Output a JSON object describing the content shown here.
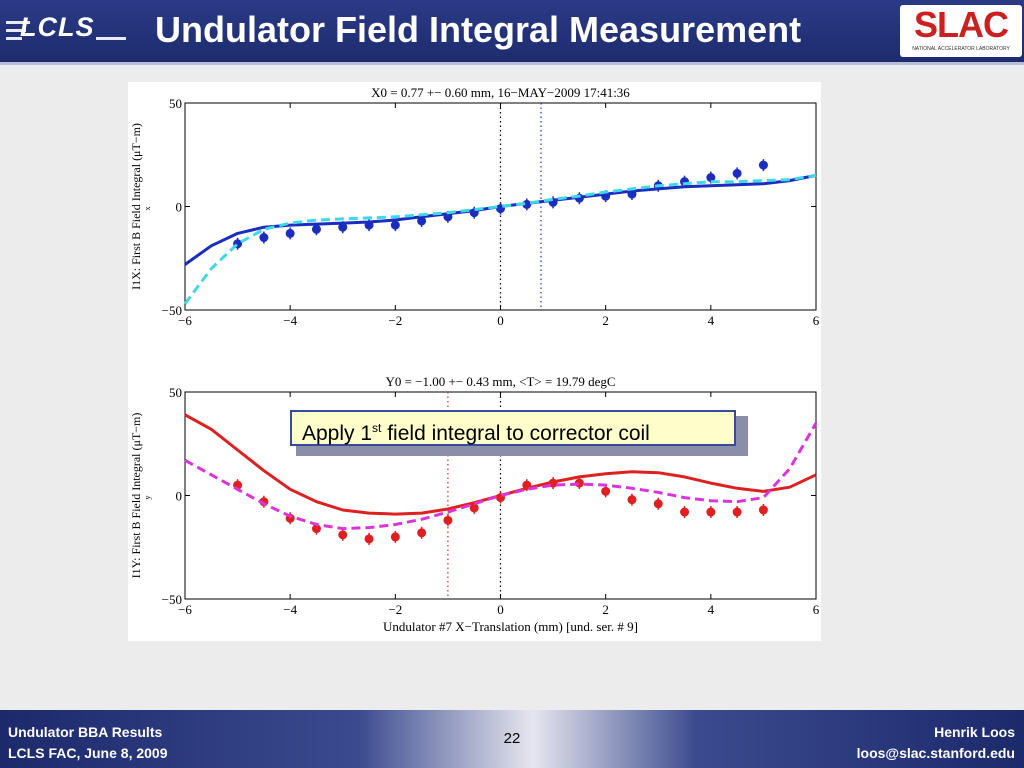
{
  "slide": {
    "title": "Undulator Field Integral Measurement",
    "page_number": "22"
  },
  "logos": {
    "left_text": "LCLS",
    "right_text": "SLAC",
    "right_subtext": "NATIONAL ACCELERATOR LABORATORY"
  },
  "callout": {
    "text_before": "Apply 1",
    "superscript": "st",
    "text_after": " field integral to corrector coil"
  },
  "footer": {
    "left_line1": "Undulator BBA Results",
    "left_line2": "LCLS FAC, June 8, 2009",
    "right_line1": "Henrik Loos",
    "right_line2": "loos@slac.stanford.edu"
  },
  "chart_data": [
    {
      "type": "line",
      "title": "X0 = 0.77 +− 0.60 mm, 16−MAY−2009 17:41:36",
      "ylabel": "I1X:  First B  Field Integral (μT−m)",
      "ylabel_subscript": "x",
      "xlabel": "",
      "xlim": [
        -6,
        6
      ],
      "ylim": [
        -50,
        50
      ],
      "xticks": [
        "−6",
        "−4",
        "−2",
        "0",
        "2",
        "4",
        "6"
      ],
      "yticks": [
        "50",
        "0",
        "−50"
      ],
      "vlines": [
        {
          "x": 0,
          "color": "#000000"
        },
        {
          "x": 0.77,
          "color": "#2233cc"
        }
      ],
      "series": [
        {
          "style": "markers",
          "color": "#1a2dbf",
          "x": [
            -5,
            -4.5,
            -4,
            -3.5,
            -3,
            -2.5,
            -2,
            -1.5,
            -1,
            -0.5,
            0,
            0.5,
            1,
            1.5,
            2,
            2.5,
            3,
            3.5,
            4,
            4.5,
            5
          ],
          "y": [
            -18,
            -15,
            -13,
            -11,
            -10,
            -9,
            -9,
            -7,
            -5,
            -3,
            -1,
            1,
            2,
            4,
            5,
            6,
            10,
            12,
            14,
            16,
            20
          ]
        },
        {
          "style": "solid",
          "color": "#1a2dbf",
          "x": [
            -6,
            -5.5,
            -5,
            -4.5,
            -4,
            -3.5,
            -3,
            -2.5,
            -2,
            -1.5,
            -1,
            -0.5,
            0,
            0.5,
            1,
            1.5,
            2,
            2.5,
            3,
            3.5,
            4,
            4.5,
            5,
            5.5,
            6
          ],
          "y": [
            -28,
            -19,
            -13,
            -10,
            -9,
            -8.5,
            -8,
            -7.5,
            -6.5,
            -5,
            -3.5,
            -2,
            0,
            1.5,
            3,
            4.5,
            6,
            7.5,
            8.5,
            9.5,
            10,
            10.5,
            11,
            12.5,
            15
          ]
        },
        {
          "style": "dashed",
          "color": "#40d8e8",
          "x": [
            -6,
            -5.5,
            -5,
            -4.5,
            -4,
            -3.5,
            -3,
            -2.5,
            -2,
            -1.5,
            -1,
            -0.5,
            0,
            0.5,
            1,
            1.5,
            2,
            2.5,
            3,
            3.5,
            4,
            4.5,
            5,
            5.5,
            6
          ],
          "y": [
            -47,
            -30,
            -18,
            -11,
            -8,
            -6.5,
            -6,
            -5.5,
            -5,
            -4,
            -3,
            -1.5,
            0,
            1.5,
            3.5,
            5,
            7,
            8.5,
            10,
            11,
            12,
            12,
            12.5,
            13,
            15
          ]
        }
      ]
    },
    {
      "type": "line",
      "title": "Y0 = −1.00 +− 0.43 mm, <T> = 19.79 degC",
      "ylabel": "I1Y:  First B  Field Integral (μT−m)",
      "ylabel_subscript": "y",
      "xlabel": "Undulator #7 X−Translation (mm) [und. ser. # 9]",
      "xlim": [
        -6,
        6
      ],
      "ylim": [
        -50,
        50
      ],
      "xticks": [
        "−6",
        "−4",
        "−2",
        "0",
        "2",
        "4",
        "6"
      ],
      "yticks": [
        "50",
        "0",
        "−50"
      ],
      "vlines": [
        {
          "x": 0,
          "color": "#000000"
        },
        {
          "x": -1.0,
          "color": "#cc3311"
        }
      ],
      "series": [
        {
          "style": "markers",
          "color": "#e02020",
          "x": [
            -5,
            -4.5,
            -4,
            -3.5,
            -3,
            -2.5,
            -2,
            -1.5,
            -1,
            -0.5,
            0,
            0.5,
            1,
            1.5,
            2,
            2.5,
            3,
            3.5,
            4,
            4.5,
            5
          ],
          "y": [
            5,
            -3,
            -11,
            -16,
            -19,
            -21,
            -20,
            -18,
            -12,
            -6,
            -1,
            5,
            6,
            6,
            2,
            -2,
            -4,
            -8,
            -8,
            -8,
            -7
          ]
        },
        {
          "style": "solid",
          "color": "#dd2020",
          "x": [
            -6,
            -5.5,
            -5,
            -4.5,
            -4,
            -3.5,
            -3,
            -2.5,
            -2,
            -1.5,
            -1,
            -0.5,
            0,
            0.5,
            1,
            1.5,
            2,
            2.5,
            3,
            3.5,
            4,
            4.5,
            5,
            5.5,
            6
          ],
          "y": [
            39,
            32,
            22,
            12,
            3,
            -3,
            -7,
            -8.5,
            -9,
            -8.5,
            -6.5,
            -3.5,
            0,
            3.5,
            6.5,
            9,
            10.5,
            11.5,
            11,
            9,
            6,
            3.5,
            2,
            4,
            10
          ]
        },
        {
          "style": "dashed",
          "color": "#dd33dd",
          "x": [
            -6,
            -5.5,
            -5,
            -4.5,
            -4,
            -3.5,
            -3,
            -2.5,
            -2,
            -1.5,
            -1,
            -0.5,
            0,
            0.5,
            1,
            1.5,
            2,
            2.5,
            3,
            3.5,
            4,
            4.5,
            5,
            5.5,
            6
          ],
          "y": [
            17,
            10,
            3,
            -4,
            -10,
            -14,
            -16,
            -15.5,
            -14,
            -11.5,
            -8,
            -4,
            0,
            3,
            5,
            5.5,
            5,
            3.5,
            1.5,
            -1,
            -2.5,
            -3,
            -1,
            13,
            35
          ]
        }
      ]
    }
  ],
  "colors": {
    "header_bg": "#1e2c6e",
    "callout_bg": "#ffffcc",
    "callout_border": "#3a4a9a",
    "slac_red": "#cc2020"
  }
}
